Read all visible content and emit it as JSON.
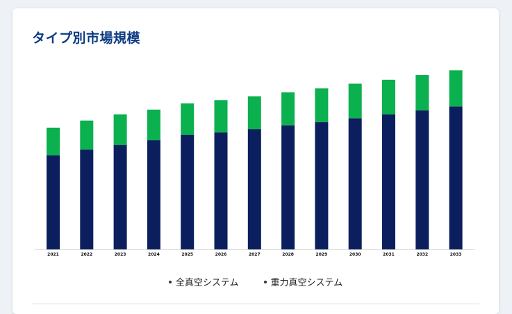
{
  "card": {
    "title": "タイプ別市場規模"
  },
  "chart_data": {
    "type": "bar",
    "stacked": true,
    "categories": [
      "2021",
      "2022",
      "2023",
      "2024",
      "2025",
      "2026",
      "2027",
      "2028",
      "2029",
      "2030",
      "2031",
      "2032",
      "2033"
    ],
    "series": [
      {
        "name": "全真空システム",
        "color": "#0b1f5e",
        "values": [
          120,
          127,
          133,
          139,
          146,
          149,
          153,
          158,
          162,
          167,
          172,
          177,
          182
        ]
      },
      {
        "name": "重力真空システム",
        "color": "#0bb04f",
        "values": [
          35,
          37,
          39,
          39,
          40,
          41,
          42,
          42,
          43,
          44,
          44,
          45,
          46
        ]
      }
    ],
    "ylim": [
      0,
      230
    ],
    "grid": false,
    "legend": "bottom"
  },
  "legend": [
    "全真空システム",
    "重力真空システム"
  ]
}
